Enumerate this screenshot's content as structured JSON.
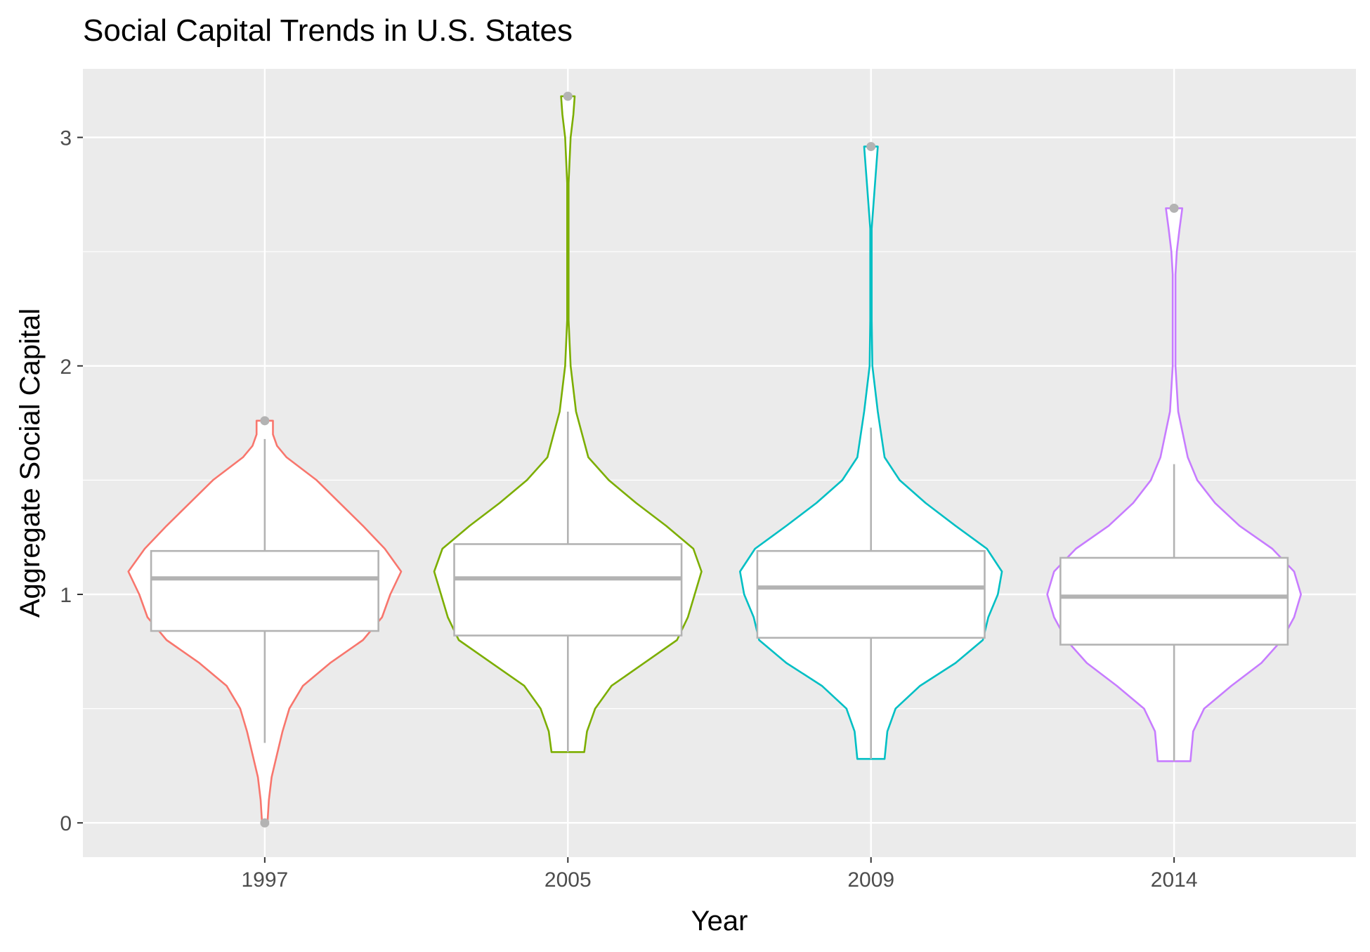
{
  "chart_data": {
    "type": "violin",
    "title": "Social Capital Trends in U.S. States",
    "xlabel": "Year",
    "ylabel": "Aggregate Social Capital",
    "categories": [
      "1997",
      "2005",
      "2009",
      "2014"
    ],
    "ylim": [
      -0.15,
      3.3
    ],
    "yticks": [
      0,
      1,
      2,
      3
    ],
    "grid": true,
    "legend": "none",
    "series": [
      {
        "category": "1997",
        "color": "#F8766D",
        "min": 0.0,
        "q1": 0.84,
        "median": 1.07,
        "q3": 1.19,
        "max": 1.76,
        "whisker_low": 0.35,
        "whisker_high": 1.68,
        "outliers": [
          1.76,
          0.0
        ],
        "density": [
          [
            0.0,
            0.02
          ],
          [
            0.1,
            0.03
          ],
          [
            0.2,
            0.05
          ],
          [
            0.3,
            0.09
          ],
          [
            0.4,
            0.13
          ],
          [
            0.5,
            0.18
          ],
          [
            0.6,
            0.28
          ],
          [
            0.7,
            0.48
          ],
          [
            0.8,
            0.72
          ],
          [
            0.9,
            0.86
          ],
          [
            1.0,
            0.92
          ],
          [
            1.1,
            1.0
          ],
          [
            1.2,
            0.88
          ],
          [
            1.3,
            0.72
          ],
          [
            1.4,
            0.55
          ],
          [
            1.5,
            0.38
          ],
          [
            1.6,
            0.16
          ],
          [
            1.65,
            0.09
          ],
          [
            1.7,
            0.06
          ],
          [
            1.76,
            0.06
          ]
        ]
      },
      {
        "category": "2005",
        "color": "#7CAE00",
        "min": 0.31,
        "q1": 0.82,
        "median": 1.07,
        "q3": 1.22,
        "max": 3.18,
        "whisker_low": 0.31,
        "whisker_high": 1.8,
        "outliers": [
          3.18
        ],
        "density": [
          [
            0.31,
            0.12
          ],
          [
            0.4,
            0.14
          ],
          [
            0.5,
            0.2
          ],
          [
            0.6,
            0.32
          ],
          [
            0.7,
            0.56
          ],
          [
            0.8,
            0.8
          ],
          [
            0.9,
            0.88
          ],
          [
            1.0,
            0.93
          ],
          [
            1.1,
            0.98
          ],
          [
            1.2,
            0.92
          ],
          [
            1.3,
            0.72
          ],
          [
            1.4,
            0.5
          ],
          [
            1.5,
            0.3
          ],
          [
            1.6,
            0.15
          ],
          [
            1.8,
            0.06
          ],
          [
            2.0,
            0.02
          ],
          [
            2.2,
            0.005
          ],
          [
            2.8,
            0.005
          ],
          [
            3.0,
            0.02
          ],
          [
            3.1,
            0.04
          ],
          [
            3.18,
            0.05
          ]
        ]
      },
      {
        "category": "2009",
        "color": "#00BFC4",
        "min": 0.28,
        "q1": 0.81,
        "median": 1.03,
        "q3": 1.19,
        "max": 2.96,
        "whisker_low": 0.28,
        "whisker_high": 1.73,
        "outliers": [
          2.96
        ],
        "density": [
          [
            0.28,
            0.1
          ],
          [
            0.4,
            0.12
          ],
          [
            0.5,
            0.18
          ],
          [
            0.6,
            0.36
          ],
          [
            0.7,
            0.62
          ],
          [
            0.8,
            0.82
          ],
          [
            0.9,
            0.86
          ],
          [
            1.0,
            0.93
          ],
          [
            1.1,
            0.96
          ],
          [
            1.2,
            0.85
          ],
          [
            1.3,
            0.62
          ],
          [
            1.4,
            0.4
          ],
          [
            1.5,
            0.21
          ],
          [
            1.6,
            0.1
          ],
          [
            1.8,
            0.05
          ],
          [
            2.0,
            0.01
          ],
          [
            2.2,
            0.005
          ],
          [
            2.6,
            0.005
          ],
          [
            2.8,
            0.03
          ],
          [
            2.96,
            0.05
          ]
        ]
      },
      {
        "category": "2014",
        "color": "#C77CFF",
        "min": 0.27,
        "q1": 0.78,
        "median": 0.99,
        "q3": 1.16,
        "max": 2.69,
        "whisker_low": 0.27,
        "whisker_high": 1.57,
        "outliers": [
          2.69
        ],
        "density": [
          [
            0.27,
            0.12
          ],
          [
            0.4,
            0.14
          ],
          [
            0.5,
            0.22
          ],
          [
            0.6,
            0.42
          ],
          [
            0.7,
            0.64
          ],
          [
            0.8,
            0.79
          ],
          [
            0.9,
            0.88
          ],
          [
            1.0,
            0.93
          ],
          [
            1.1,
            0.88
          ],
          [
            1.2,
            0.72
          ],
          [
            1.3,
            0.48
          ],
          [
            1.4,
            0.3
          ],
          [
            1.5,
            0.17
          ],
          [
            1.6,
            0.1
          ],
          [
            1.8,
            0.03
          ],
          [
            2.0,
            0.01
          ],
          [
            2.4,
            0.01
          ],
          [
            2.5,
            0.02
          ],
          [
            2.6,
            0.04
          ],
          [
            2.69,
            0.06
          ]
        ]
      }
    ]
  }
}
